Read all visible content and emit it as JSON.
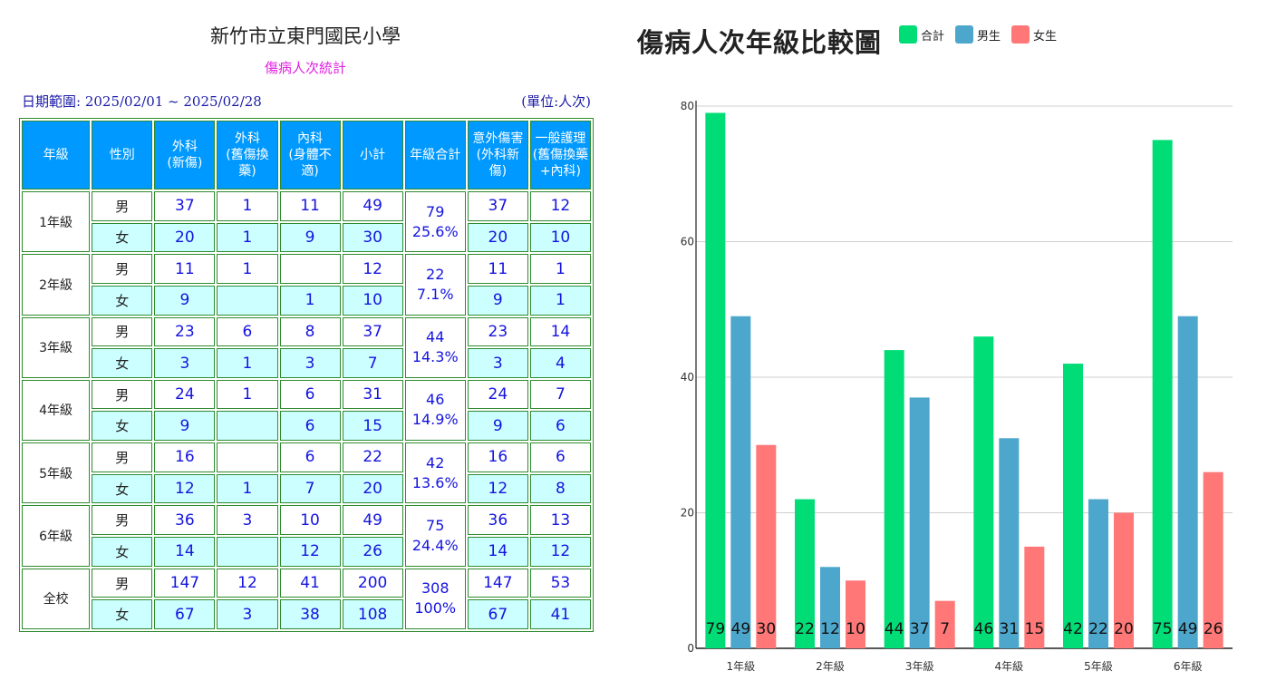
{
  "table": {
    "school_name": "新竹市立東門國民小學",
    "subtitle": "傷病人次統計",
    "date_range": "日期範圍: 2025/02/01 ~ 2025/02/28",
    "unit": "(單位:人次)",
    "headers": {
      "grade": "年級",
      "sex": "性別",
      "surgery_new_1": "外科",
      "surgery_new_2": "(新傷)",
      "surgery_old_1": "外科",
      "surgery_old_2": "(舊傷換藥)",
      "internal_1": "內科",
      "internal_2": "(身體不適)",
      "subtotal": "小計",
      "grade_total": "年級合計",
      "accident_1": "意外傷害",
      "accident_2": "(外科新傷)",
      "general_1": "一般護理",
      "general_2": "(舊傷換藥",
      "general_3": "+內科)"
    },
    "rows": [
      {
        "grade": "1年級",
        "total": "79",
        "pct": "25.6%",
        "male": {
          "sex": "男",
          "new": "37",
          "old": "1",
          "internal": "11",
          "subtotal": "49",
          "accident": "37",
          "general": "12"
        },
        "female": {
          "sex": "女",
          "new": "20",
          "old": "1",
          "internal": "9",
          "subtotal": "30",
          "accident": "20",
          "general": "10"
        }
      },
      {
        "grade": "2年級",
        "total": "22",
        "pct": "7.1%",
        "male": {
          "sex": "男",
          "new": "11",
          "old": "1",
          "internal": "",
          "subtotal": "12",
          "accident": "11",
          "general": "1"
        },
        "female": {
          "sex": "女",
          "new": "9",
          "old": "",
          "internal": "1",
          "subtotal": "10",
          "accident": "9",
          "general": "1"
        }
      },
      {
        "grade": "3年級",
        "total": "44",
        "pct": "14.3%",
        "male": {
          "sex": "男",
          "new": "23",
          "old": "6",
          "internal": "8",
          "subtotal": "37",
          "accident": "23",
          "general": "14"
        },
        "female": {
          "sex": "女",
          "new": "3",
          "old": "1",
          "internal": "3",
          "subtotal": "7",
          "accident": "3",
          "general": "4"
        }
      },
      {
        "grade": "4年級",
        "total": "46",
        "pct": "14.9%",
        "male": {
          "sex": "男",
          "new": "24",
          "old": "1",
          "internal": "6",
          "subtotal": "31",
          "accident": "24",
          "general": "7"
        },
        "female": {
          "sex": "女",
          "new": "9",
          "old": "",
          "internal": "6",
          "subtotal": "15",
          "accident": "9",
          "general": "6"
        }
      },
      {
        "grade": "5年級",
        "total": "42",
        "pct": "13.6%",
        "male": {
          "sex": "男",
          "new": "16",
          "old": "",
          "internal": "6",
          "subtotal": "22",
          "accident": "16",
          "general": "6"
        },
        "female": {
          "sex": "女",
          "new": "12",
          "old": "1",
          "internal": "7",
          "subtotal": "20",
          "accident": "12",
          "general": "8"
        }
      },
      {
        "grade": "6年級",
        "total": "75",
        "pct": "24.4%",
        "male": {
          "sex": "男",
          "new": "36",
          "old": "3",
          "internal": "10",
          "subtotal": "49",
          "accident": "36",
          "general": "13"
        },
        "female": {
          "sex": "女",
          "new": "14",
          "old": "",
          "internal": "12",
          "subtotal": "26",
          "accident": "14",
          "general": "12"
        }
      },
      {
        "grade": "全校",
        "total": "308",
        "pct": "100%",
        "male": {
          "sex": "男",
          "new": "147",
          "old": "12",
          "internal": "41",
          "subtotal": "200",
          "accident": "147",
          "general": "53"
        },
        "female": {
          "sex": "女",
          "new": "67",
          "old": "3",
          "internal": "38",
          "subtotal": "108",
          "accident": "67",
          "general": "41"
        }
      }
    ]
  },
  "chart_data": {
    "type": "bar",
    "title": "傷病人次年級比較圖",
    "categories": [
      "1年級",
      "2年級",
      "3年級",
      "4年級",
      "5年級",
      "6年級"
    ],
    "series": [
      {
        "name": "合計",
        "color": "#00dd77",
        "values": [
          79,
          22,
          44,
          46,
          42,
          75
        ]
      },
      {
        "name": "男生",
        "color": "#4da6cc",
        "values": [
          49,
          12,
          37,
          31,
          22,
          49
        ]
      },
      {
        "name": "女生",
        "color": "#ff7777",
        "values": [
          30,
          10,
          7,
          15,
          20,
          26
        ]
      }
    ],
    "yticks": [
      0,
      20,
      40,
      60,
      80
    ],
    "ylim": [
      0,
      80
    ],
    "grid": true,
    "legend": "top"
  }
}
